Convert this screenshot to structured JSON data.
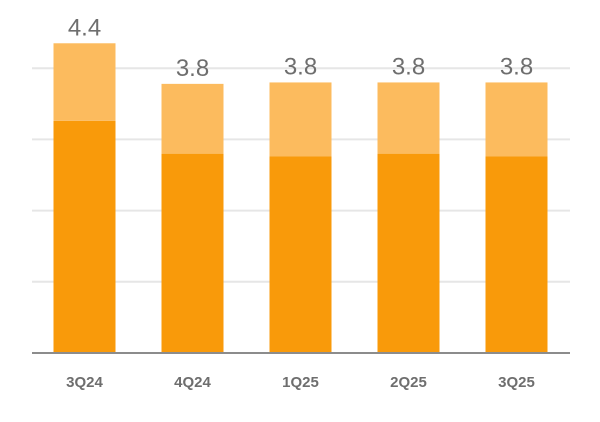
{
  "chart_data": {
    "type": "bar",
    "stacked": true,
    "categories": [
      "3Q24",
      "4Q24",
      "1Q25",
      "2Q25",
      "3Q25"
    ],
    "series": [
      {
        "values": [
          3.26,
          2.8,
          2.76,
          2.8,
          2.76
        ],
        "color": "#f99a0a"
      },
      {
        "values": [
          1.09,
          0.98,
          1.04,
          1.0,
          1.04
        ],
        "color": "#fcbb5e"
      }
    ],
    "totals": [
      "4.4",
      "3.8",
      "3.8",
      "3.8",
      "3.8"
    ],
    "ylim": [
      0,
      5
    ],
    "grid": true,
    "gridColor": "#e6e6e6",
    "axisColor": "#8c8c8c",
    "labelColor": "#6e6e6e",
    "title": "",
    "xlabel": "",
    "ylabel": ""
  }
}
